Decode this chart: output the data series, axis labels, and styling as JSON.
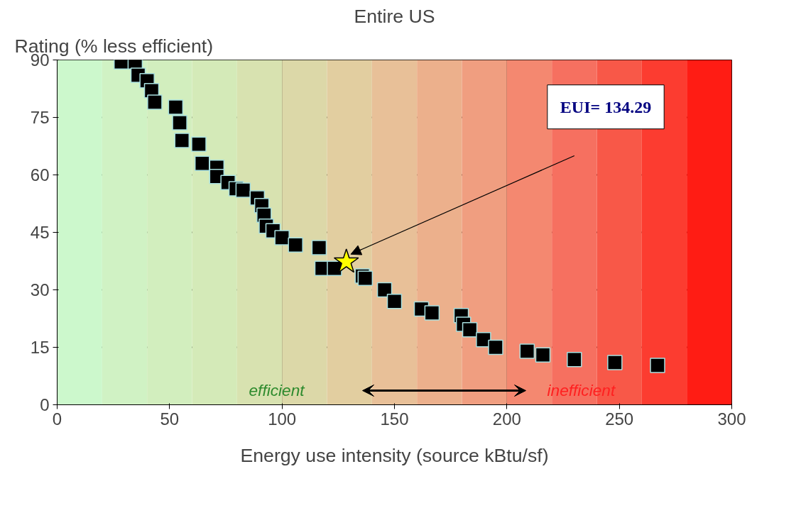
{
  "chart_data": {
    "type": "scatter",
    "title": "Entire US",
    "ylabel": "Rating (% less efficient)",
    "xlabel": "Energy use intensity (source kBtu/sf)",
    "series": [
      {
        "color": "#000000",
        "marker": "square",
        "x": [
          28.5,
          34.7,
          36,
          40,
          42,
          43.4,
          52.7,
          54.5,
          55.5,
          63,
          64.5,
          71,
          71,
          76,
          79.6,
          82.7,
          89,
          91,
          92,
          93,
          96,
          100,
          106,
          116.5,
          117.8,
          123.3,
          135.7,
          137,
          145.6,
          150,
          162,
          166.7,
          179.7,
          180.7,
          183.5,
          189.6,
          195,
          209,
          216,
          230,
          248,
          267
        ],
        "values": [
          89.5,
          89.5,
          86,
          84.6,
          82,
          79,
          77.7,
          73.6,
          69,
          68,
          63,
          62,
          59.6,
          58,
          56.4,
          56,
          54,
          52,
          49.5,
          46.6,
          45.4,
          43.6,
          41.7,
          41,
          35.6,
          35.6,
          33.6,
          33,
          30,
          27,
          25,
          24,
          23.3,
          21,
          19.6,
          17,
          15,
          14,
          13,
          11.8,
          11,
          10.3
        ]
      },
      {
        "color": "#ffff00",
        "marker": "star",
        "x": [
          128.6
        ],
        "values": [
          37.3
        ]
      }
    ],
    "annotations": [
      "EUI= 134.29",
      "efficient",
      "inefficient"
    ],
    "bands": [
      {
        "axis": "x",
        "from": 0,
        "to": 20,
        "color": "#ccf8cc"
      },
      {
        "axis": "x",
        "from": 20,
        "to": 40,
        "color": "#d0f2c4"
      },
      {
        "axis": "x",
        "from": 40,
        "to": 60,
        "color": "#d2eebe"
      },
      {
        "axis": "x",
        "from": 60,
        "to": 80,
        "color": "#d4eab8"
      },
      {
        "axis": "x",
        "from": 80,
        "to": 100,
        "color": "#d8e2b0"
      },
      {
        "axis": "x",
        "from": 100,
        "to": 120,
        "color": "#dcd8a8"
      },
      {
        "axis": "x",
        "from": 120,
        "to": 140,
        "color": "#e2cea0"
      },
      {
        "axis": "x",
        "from": 140,
        "to": 160,
        "color": "#e8c098"
      },
      {
        "axis": "x",
        "from": 160,
        "to": 180,
        "color": "#ecb08c"
      },
      {
        "axis": "x",
        "from": 180,
        "to": 200,
        "color": "#f09e80"
      },
      {
        "axis": "x",
        "from": 200,
        "to": 220,
        "color": "#f48870"
      },
      {
        "axis": "x",
        "from": 220,
        "to": 240,
        "color": "#f67060"
      },
      {
        "axis": "x",
        "from": 240,
        "to": 260,
        "color": "#f85848"
      },
      {
        "axis": "x",
        "from": 260,
        "to": 280,
        "color": "#fc3c30"
      },
      {
        "axis": "x",
        "from": 280,
        "to": 300,
        "color": "#ff1c14"
      }
    ],
    "xlim": [
      0,
      300
    ],
    "xticks": [
      0,
      50,
      100,
      150,
      200,
      250,
      300
    ],
    "ylim": [
      0,
      90
    ],
    "yticks": [
      0,
      15,
      30,
      45,
      60,
      75,
      90
    ],
    "grid": true
  }
}
